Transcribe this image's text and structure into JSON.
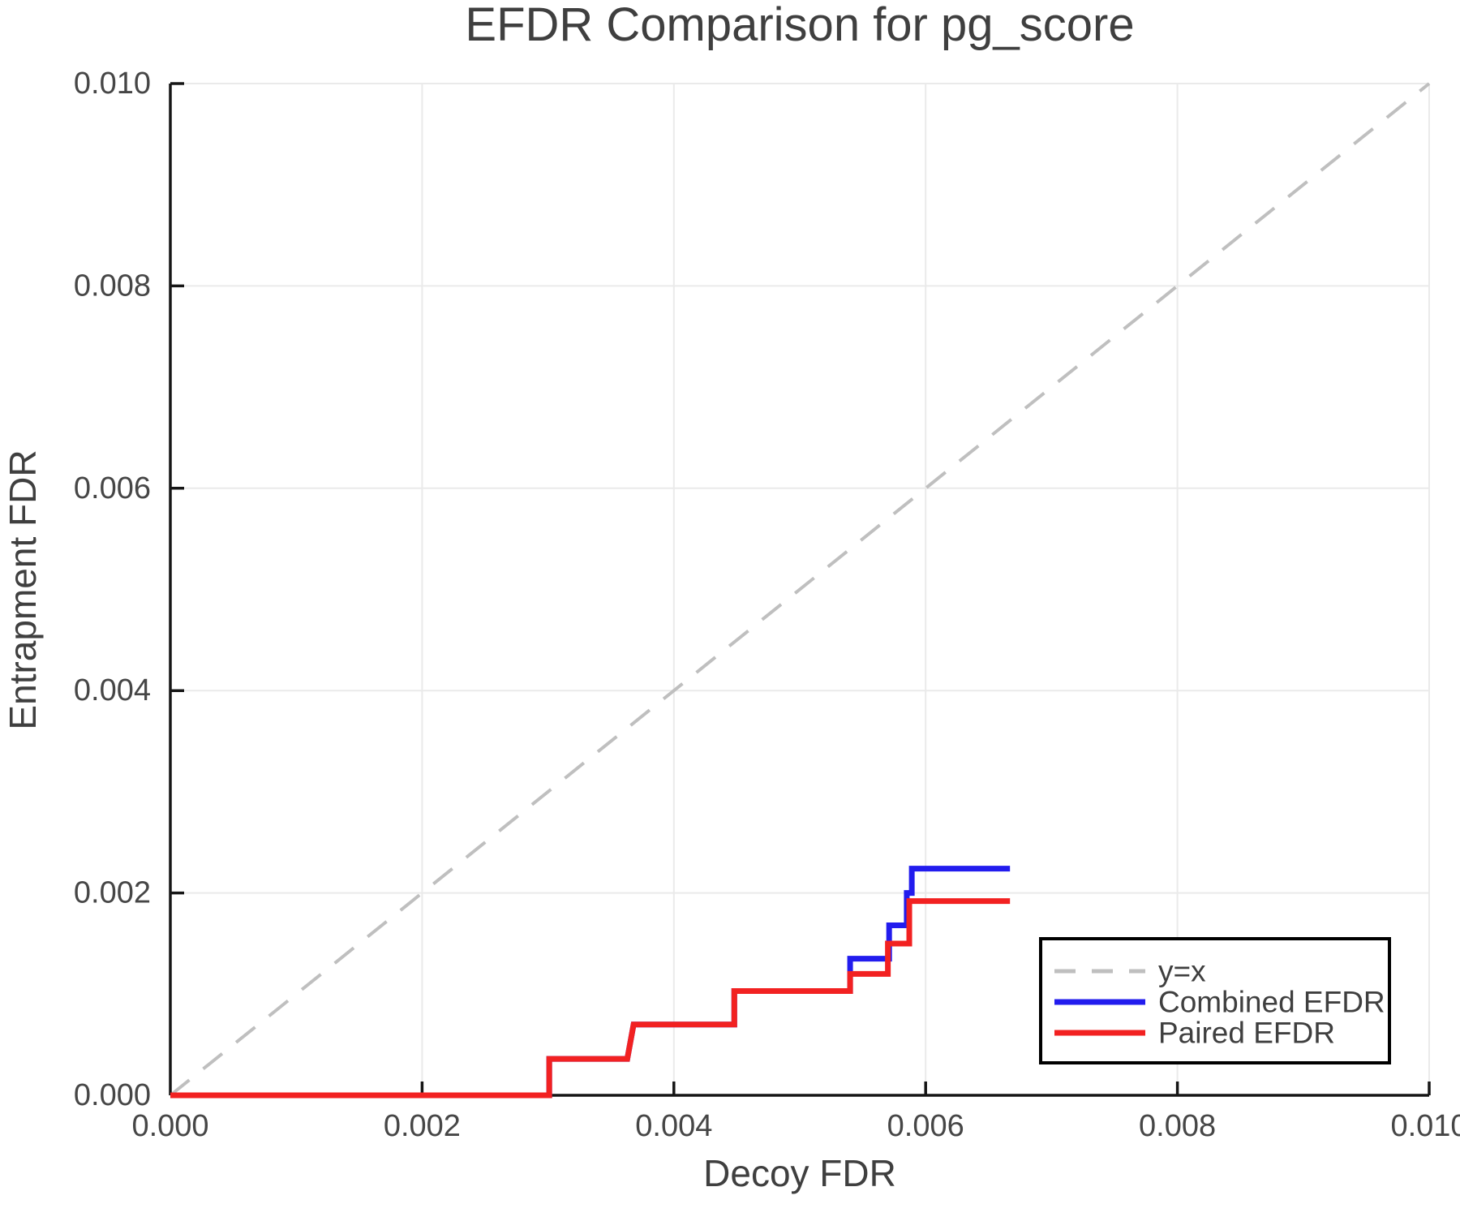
{
  "chart_data": {
    "type": "line",
    "title": "EFDR Comparison for pg_score",
    "xlabel": "Decoy FDR",
    "ylabel": "Entrapment FDR",
    "xlim": [
      0,
      0.01
    ],
    "ylim": [
      0,
      0.01
    ],
    "grid": true,
    "legend_position": "bottom-right",
    "x_ticks": {
      "values": [
        0,
        0.002,
        0.004,
        0.006,
        0.008,
        0.01
      ],
      "labels": [
        "0.000",
        "0.002",
        "0.004",
        "0.006",
        "0.008",
        "0.010"
      ]
    },
    "y_ticks": {
      "values": [
        0,
        0.002,
        0.004,
        0.006,
        0.008,
        0.01
      ],
      "labels": [
        "0.000",
        "0.002",
        "0.004",
        "0.006",
        "0.008",
        "0.010"
      ]
    },
    "reference_line": {
      "label": "y=x",
      "x": [
        0,
        0.01
      ],
      "y": [
        0,
        0.01
      ],
      "style": "dashed",
      "color": "#bfbfbf"
    },
    "series": [
      {
        "name": "Combined EFDR",
        "color": "#221cee",
        "x": [
          0,
          0.00301,
          0.00301,
          0.00363,
          0.00368,
          0.00448,
          0.00448,
          0.0054,
          0.0054,
          0.00571,
          0.00571,
          0.00585,
          0.00585,
          0.00589,
          0.00589,
          0.00667
        ],
        "y": [
          0,
          0,
          0.00036,
          0.00036,
          0.0007,
          0.0007,
          0.00103,
          0.00103,
          0.00135,
          0.00135,
          0.00168,
          0.00168,
          0.002,
          0.002,
          0.00224,
          0.00224
        ]
      },
      {
        "name": "Paired EFDR",
        "color": "#f22121",
        "x": [
          0,
          0.00301,
          0.00301,
          0.00363,
          0.00368,
          0.00448,
          0.00448,
          0.0054,
          0.0054,
          0.0057,
          0.0057,
          0.00587,
          0.00587,
          0.00667
        ],
        "y": [
          0,
          0,
          0.00036,
          0.00036,
          0.0007,
          0.0007,
          0.00103,
          0.00103,
          0.0012,
          0.0012,
          0.0015,
          0.0015,
          0.00192,
          0.00192
        ]
      }
    ],
    "legend": {
      "entries": [
        {
          "label": "y=x"
        },
        {
          "label": "Combined EFDR"
        },
        {
          "label": "Paired EFDR"
        }
      ]
    }
  },
  "style": {
    "grid_color": "#eaeaea",
    "axis_color": "#161616",
    "text_color": "#3f3f3f",
    "tick_text_color": "#464646",
    "legend_border_color": "#000000",
    "background": "#ffffff"
  }
}
